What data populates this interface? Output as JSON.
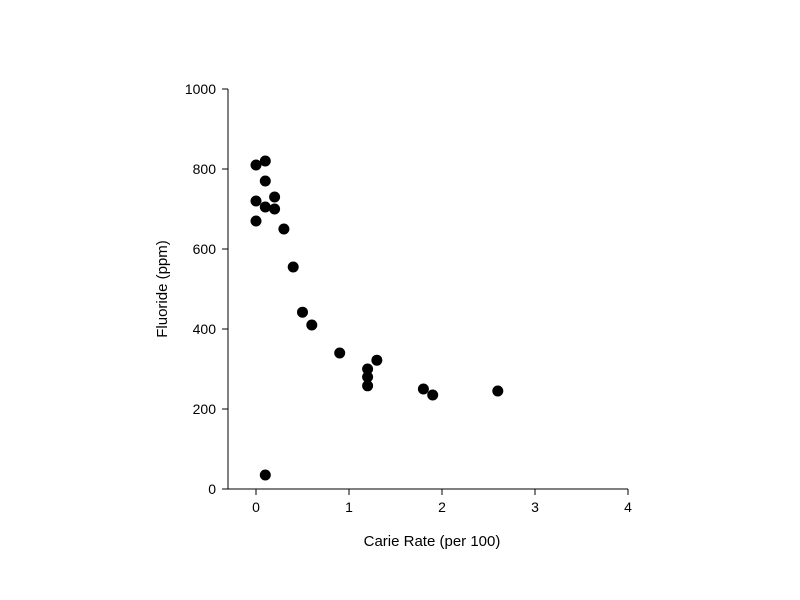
{
  "chart_data": {
    "type": "scatter",
    "title": "",
    "xlabel": "Carie Rate (per 100)",
    "ylabel": "Fluoride (ppm)",
    "xlim": [
      -0.3,
      4
    ],
    "ylim": [
      0,
      1000
    ],
    "xticks": [
      0,
      1,
      2,
      3,
      4
    ],
    "yticks": [
      0,
      200,
      400,
      600,
      800,
      1000
    ],
    "grid": false,
    "legend": "none",
    "marker_color": "#000000",
    "series": [
      {
        "points": [
          {
            "x": 0.0,
            "y": 810
          },
          {
            "x": 0.1,
            "y": 820
          },
          {
            "x": 0.1,
            "y": 770
          },
          {
            "x": 0.0,
            "y": 720
          },
          {
            "x": 0.0,
            "y": 670
          },
          {
            "x": 0.1,
            "y": 705
          },
          {
            "x": 0.2,
            "y": 730
          },
          {
            "x": 0.2,
            "y": 700
          },
          {
            "x": 0.3,
            "y": 650
          },
          {
            "x": 0.4,
            "y": 555
          },
          {
            "x": 0.5,
            "y": 442
          },
          {
            "x": 0.6,
            "y": 410
          },
          {
            "x": 0.9,
            "y": 340
          },
          {
            "x": 1.2,
            "y": 300
          },
          {
            "x": 1.2,
            "y": 280
          },
          {
            "x": 1.2,
            "y": 258
          },
          {
            "x": 1.3,
            "y": 322
          },
          {
            "x": 1.8,
            "y": 250
          },
          {
            "x": 1.9,
            "y": 235
          },
          {
            "x": 2.6,
            "y": 245
          },
          {
            "x": 0.1,
            "y": 35
          }
        ]
      }
    ]
  }
}
